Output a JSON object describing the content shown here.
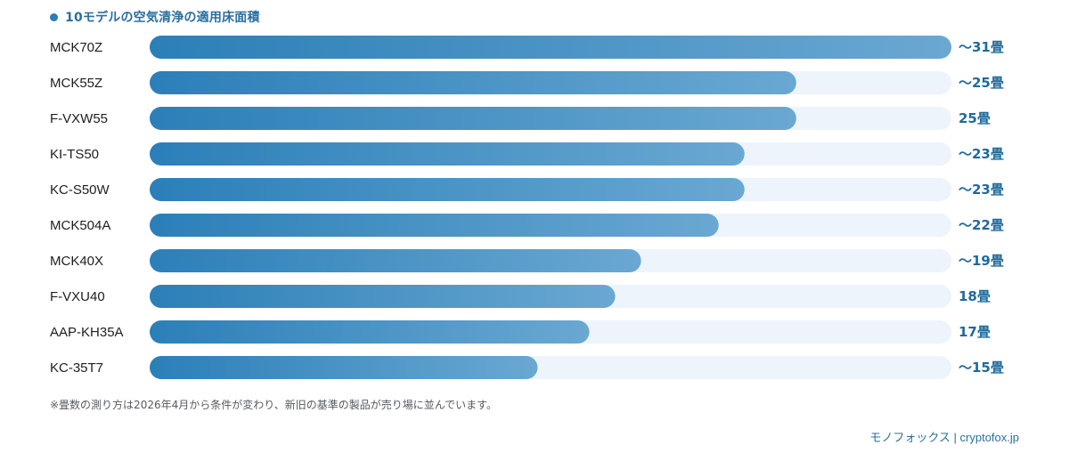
{
  "chart_data": {
    "type": "bar",
    "orientation": "horizontal",
    "title": "10モデルの空気清浄の適用床面積",
    "categories": [
      "MCK70Z",
      "MCK55Z",
      "F-VXW55",
      "KI-TS50",
      "KC-S50W",
      "MCK504A",
      "MCK40X",
      "F-VXU40",
      "AAP-KH35A",
      "KC-35T7"
    ],
    "values": [
      31,
      25,
      25,
      23,
      23,
      22,
      19,
      18,
      17,
      15
    ],
    "value_labels": [
      "～31畳",
      "～25畳",
      "25畳",
      "～23畳",
      "～23畳",
      "～22畳",
      "～19畳",
      "18畳",
      "17畳",
      "～15畳"
    ],
    "xlim": [
      0,
      31
    ],
    "grid": false,
    "legend": "none"
  },
  "note": "※畳数の測り方は2026年4月から条件が変わり、新旧の基準の製品が売り場に並んでいます。",
  "credit": "モノフォックス | cryptofox.jp",
  "colors": {
    "bar_start": "#2b7fb8",
    "bar_end": "#6aa8d2",
    "track": "#edf4fb",
    "value_text": "#1f6a9c",
    "label_text": "#1e1e1e",
    "title_dot": "#2a7db6"
  }
}
